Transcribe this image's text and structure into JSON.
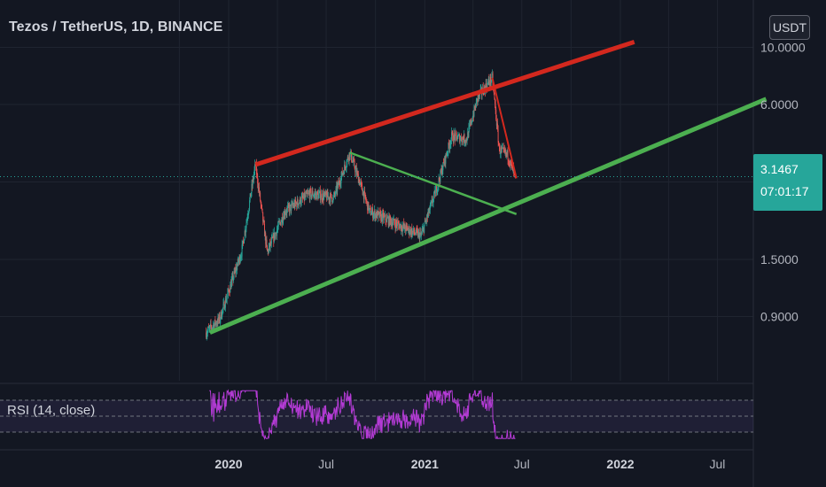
{
  "header": {
    "title": "Tezos / TetherUS, 1D, BINANCE",
    "currency_button": "USDT"
  },
  "price_axis": {
    "ticks": [
      "10.0000",
      "6.0000",
      "1.5000",
      "0.9000"
    ],
    "last_price": "3.1467",
    "countdown": "07:01:17"
  },
  "time_axis": {
    "ticks": [
      "2020",
      "Jul",
      "2021",
      "Jul",
      "2022",
      "Jul"
    ]
  },
  "indicator": {
    "label": "RSI (14, close)"
  },
  "colors": {
    "background": "#131722",
    "up_candle": "#26a69a",
    "down_candle": "#ef5350",
    "upper_trendline": "#d3281e",
    "lower_trendline": "#4caf50",
    "rsi_line": "#b43bd5",
    "rsi_band": "#7e57c2"
  },
  "chart_data": {
    "type": "candlestick",
    "title": "Tezos / TetherUS, 1D, BINANCE",
    "y_scale": "log",
    "xlabel": "",
    "ylabel": "",
    "x_range": [
      "2019-11-15",
      "2022-09-30"
    ],
    "y_range": [
      0.62,
      10.5
    ],
    "last_price": 3.1467,
    "price_anchors": [
      {
        "date": "2019-11-20",
        "price": 0.78
      },
      {
        "date": "2019-12-15",
        "price": 0.88
      },
      {
        "date": "2020-01-25",
        "price": 1.6
      },
      {
        "date": "2020-02-20",
        "price": 3.5
      },
      {
        "date": "2020-03-13",
        "price": 1.6
      },
      {
        "date": "2020-04-15",
        "price": 2.3
      },
      {
        "date": "2020-06-01",
        "price": 2.7
      },
      {
        "date": "2020-07-15",
        "price": 2.6
      },
      {
        "date": "2020-08-14",
        "price": 3.9
      },
      {
        "date": "2020-09-20",
        "price": 2.3
      },
      {
        "date": "2020-11-01",
        "price": 2.1
      },
      {
        "date": "2020-12-25",
        "price": 1.85
      },
      {
        "date": "2021-01-20",
        "price": 2.7
      },
      {
        "date": "2021-02-20",
        "price": 4.5
      },
      {
        "date": "2021-03-20",
        "price": 4.4
      },
      {
        "date": "2021-04-10",
        "price": 6.4
      },
      {
        "date": "2021-05-07",
        "price": 7.6
      },
      {
        "date": "2021-05-20",
        "price": 4.0
      },
      {
        "date": "2021-06-05",
        "price": 3.8
      },
      {
        "date": "2021-06-19",
        "price": 3.1
      }
    ],
    "trendlines": [
      {
        "name": "upper-channel",
        "color": "#d3281e",
        "points": [
          [
            "2020-02-20",
            3.5
          ],
          [
            "2022-01-27",
            10.5
          ]
        ]
      },
      {
        "name": "lower-channel",
        "color": "#4caf50",
        "points": [
          [
            "2019-11-27",
            0.78
          ],
          [
            "2022-09-30",
            6.3
          ]
        ]
      },
      {
        "name": "descending-line",
        "color": "#4caf50",
        "points": [
          [
            "2020-08-14",
            3.9
          ],
          [
            "2021-06-21",
            2.25
          ]
        ]
      },
      {
        "name": "drop-line",
        "color": "#d3281e",
        "points": [
          [
            "2021-05-07",
            7.6
          ],
          [
            "2021-06-21",
            3.1
          ]
        ]
      }
    ],
    "rsi": {
      "name": "RSI (14, close)",
      "band_upper": 70,
      "band_middle": 50,
      "band_lower": 30,
      "x_range": [
        "2019-11-20",
        "2021-06-19"
      ]
    }
  }
}
